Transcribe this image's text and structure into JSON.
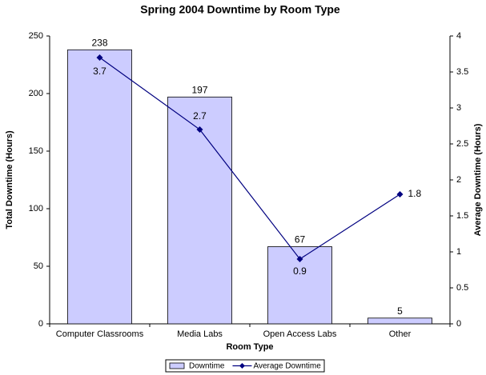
{
  "chart_data": {
    "type": "bar-line",
    "title": "Spring 2004 Downtime by Room Type",
    "x_label": "Room Type",
    "y_label": "Total Downtime (Hours)",
    "y2_label": "Average Downtime (Hours)",
    "categories": [
      "Computer Classrooms",
      "Media Labs",
      "Open Access Labs",
      "Other"
    ],
    "series": [
      {
        "name": "Downtime",
        "type": "bar",
        "color": "#ccccff",
        "values": [
          238,
          197,
          67,
          5
        ]
      },
      {
        "name": "Average Downtime",
        "type": "line",
        "axis": "y2",
        "color": "#000080",
        "values": [
          3.7,
          2.7,
          0.9,
          1.8
        ]
      }
    ],
    "ylim": [
      0,
      250
    ],
    "yticks": [
      0,
      50,
      100,
      150,
      200,
      250
    ],
    "y2lim": [
      0,
      4
    ],
    "y2ticks": [
      0,
      0.5,
      1,
      1.5,
      2,
      2.5,
      3,
      3.5,
      4
    ],
    "legend": "bottom"
  }
}
